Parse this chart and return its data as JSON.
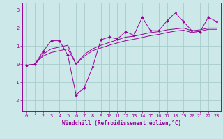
{
  "background_color": "#cce8e8",
  "grid_color": "#aacccc",
  "line_color": "#990099",
  "xlabel": "Windchill (Refroidissement éolien,°C)",
  "xlabel_fontsize": 5.5,
  "tick_fontsize": 5,
  "xlim": [
    -0.5,
    23.5
  ],
  "ylim": [
    -2.6,
    3.4
  ],
  "yticks": [
    -2,
    -1,
    0,
    1,
    2,
    3
  ],
  "xticks": [
    0,
    1,
    2,
    3,
    4,
    5,
    6,
    7,
    8,
    9,
    10,
    11,
    12,
    13,
    14,
    15,
    16,
    17,
    18,
    19,
    20,
    21,
    22,
    23
  ],
  "series1_x": [
    0,
    1,
    2,
    3,
    4,
    5,
    6,
    7,
    8,
    9,
    10,
    11,
    12,
    13,
    14,
    15,
    16,
    17,
    18,
    19,
    20,
    21,
    22,
    23
  ],
  "series1_y": [
    -0.05,
    0.0,
    0.7,
    1.3,
    1.3,
    0.5,
    -1.7,
    -1.3,
    -0.15,
    1.35,
    1.5,
    1.4,
    1.8,
    1.6,
    2.6,
    1.85,
    1.85,
    2.4,
    2.85,
    2.35,
    1.85,
    1.8,
    2.6,
    2.35
  ],
  "series2_x": [
    0,
    1,
    2,
    3,
    4,
    5,
    6,
    7,
    8,
    9,
    10,
    11,
    12,
    13,
    14,
    15,
    16,
    17,
    18,
    19,
    20,
    21,
    22,
    23
  ],
  "series2_y": [
    -0.05,
    0.0,
    0.55,
    0.85,
    0.95,
    1.05,
    0.0,
    0.55,
    0.85,
    1.05,
    1.2,
    1.35,
    1.5,
    1.55,
    1.65,
    1.75,
    1.8,
    1.9,
    1.95,
    2.0,
    1.85,
    1.9,
    2.0,
    2.0
  ],
  "series3_x": [
    0,
    1,
    2,
    3,
    4,
    5,
    6,
    7,
    8,
    9,
    10,
    11,
    12,
    13,
    14,
    15,
    16,
    17,
    18,
    19,
    20,
    21,
    22,
    23
  ],
  "series3_y": [
    -0.05,
    0.0,
    0.45,
    0.65,
    0.75,
    0.85,
    0.0,
    0.45,
    0.75,
    0.9,
    1.05,
    1.18,
    1.3,
    1.38,
    1.48,
    1.58,
    1.65,
    1.75,
    1.83,
    1.88,
    1.75,
    1.82,
    1.93,
    1.93
  ]
}
